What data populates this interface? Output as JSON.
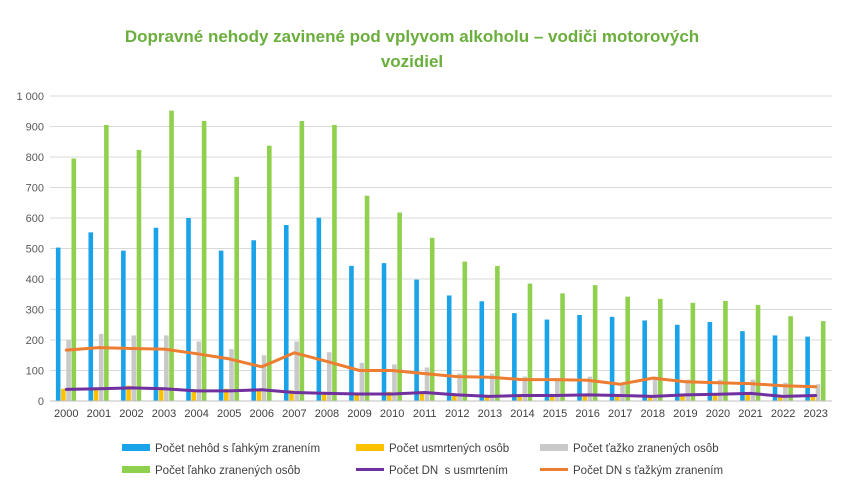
{
  "chart_data": {
    "type": "bar",
    "title": "Dopravné nehody zavinené pod vplyvom alkoholu – vodiči motorových vozidiel",
    "title_lines": [
      "Dopravné nehody zavinené pod vplyvom alkoholu – vodiči motorových",
      "vozidiel"
    ],
    "title_color": "#6aae3c",
    "xlabel": "",
    "ylabel": "",
    "ylim": [
      0,
      1000
    ],
    "yticks": [
      0,
      100,
      200,
      300,
      400,
      500,
      600,
      700,
      800,
      900,
      1000
    ],
    "ytick_labels": [
      "0",
      "100",
      "200",
      "300",
      "400",
      "500",
      "600",
      "700",
      "800",
      "900",
      "1 000"
    ],
    "grid": true,
    "legend_position": "bottom",
    "categories": [
      "2000",
      "2001",
      "2002",
      "2003",
      "2004",
      "2005",
      "2006",
      "2007",
      "2008",
      "2009",
      "2010",
      "2011",
      "2012",
      "2013",
      "2014",
      "2015",
      "2016",
      "2017",
      "2018",
      "2019",
      "2020",
      "2021",
      "2022",
      "2023"
    ],
    "series": [
      {
        "name": "Počet nehôd s ľahkým zranením",
        "kind": "bar",
        "color": "#1aa3e8",
        "values": [
          503,
          553,
          493,
          568,
          600,
          493,
          527,
          577,
          601,
          443,
          452,
          398,
          346,
          327,
          288,
          267,
          282,
          276,
          264,
          250,
          259,
          229,
          215,
          211
        ]
      },
      {
        "name": "Počet usmrtených osôb",
        "kind": "bar",
        "color": "#ffc000",
        "values": [
          40,
          45,
          50,
          45,
          38,
          40,
          40,
          35,
          30,
          28,
          30,
          25,
          20,
          15,
          20,
          18,
          20,
          18,
          15,
          20,
          22,
          25,
          15,
          18
        ]
      },
      {
        "name": "Počet ťažko zranených osôb",
        "kind": "bar",
        "color": "#c9c9c9",
        "values": [
          200,
          220,
          215,
          215,
          195,
          170,
          150,
          195,
          160,
          125,
          120,
          110,
          90,
          90,
          80,
          75,
          80,
          60,
          80,
          70,
          70,
          70,
          60,
          55
        ]
      },
      {
        "name": "Počet ľahko zranených osôb",
        "kind": "bar",
        "color": "#8fd14f",
        "values": [
          795,
          905,
          823,
          952,
          918,
          735,
          837,
          918,
          905,
          673,
          618,
          535,
          457,
          443,
          385,
          353,
          380,
          342,
          335,
          322,
          328,
          315,
          278,
          262
        ]
      },
      {
        "name": "Počet DN  s usmrtením",
        "kind": "line",
        "color": "#7030a0",
        "values": [
          38,
          40,
          43,
          40,
          33,
          33,
          37,
          28,
          25,
          23,
          23,
          28,
          20,
          15,
          18,
          18,
          20,
          18,
          15,
          20,
          22,
          25,
          15,
          18
        ]
      },
      {
        "name": "Počet DN s ťažkým zranením",
        "kind": "line",
        "color": "#ed7d31",
        "values": [
          167,
          175,
          172,
          170,
          155,
          138,
          112,
          158,
          130,
          100,
          100,
          90,
          80,
          78,
          70,
          70,
          68,
          55,
          75,
          63,
          60,
          57,
          50,
          47
        ]
      }
    ]
  }
}
